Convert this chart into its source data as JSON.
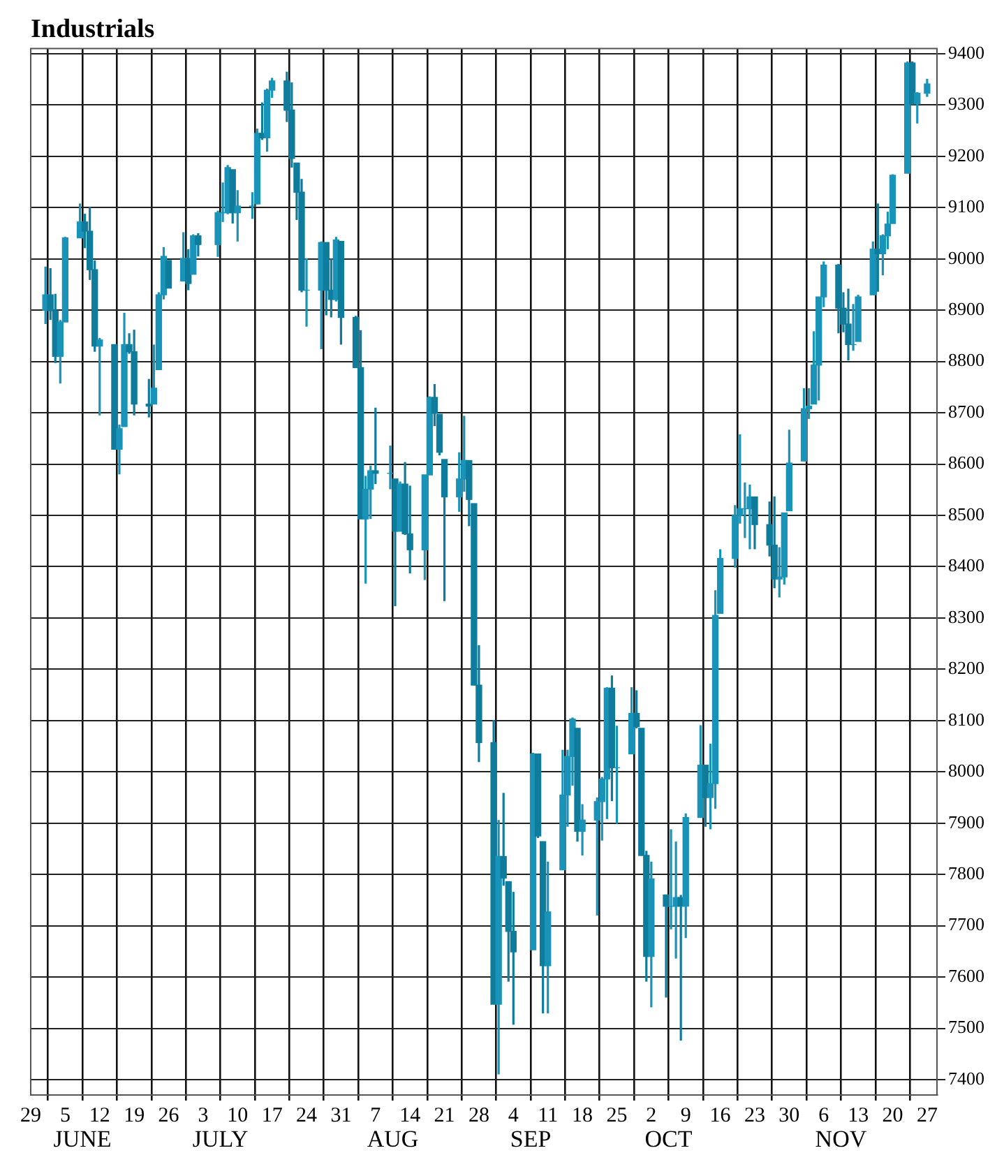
{
  "chart_data": {
    "type": "candlestick",
    "title": "Industrials",
    "colors": [
      "#1a93b8",
      "#0f7c9c",
      "#0f7c9c",
      "#1a93b8",
      "#1a93b8",
      "#1a93b8",
      "#0f7c9c",
      "#0f7c9c",
      "#0f7c9c",
      "#1a93b8",
      "#0f7c9c",
      "#1a93b8",
      "#1a93b8",
      "#0f7c9c",
      "#0f7c9c",
      "#0f7c9c",
      "#1a93b8",
      "#1a93b8",
      "#1a93b8",
      "#0f7c9c",
      "#1a93b8",
      "#0f7c9c",
      "#1a93b8",
      "#0f7c9c",
      "#1a93b8",
      "#1a93b8",
      "#1a93b8",
      "#0f7c9c",
      "#1a93b8",
      "#1a93b8",
      "#1a93b8",
      "#0f7c9c",
      "#1a93b8",
      "#1a93b8",
      "#0f7c9c",
      "#0f7c9c",
      "#0f7c9c",
      "#0f7c9c",
      "#1a93b8",
      "#1a93b8",
      "#0f7c9c",
      "#0f7c9c",
      "#1a93b8",
      "#0f7c9c",
      "#0f7c9c",
      "#0f7c9c",
      "#1a93b8",
      "#1a93b8",
      "#0f7c9c",
      "#1a93b8",
      "#0f7c9c",
      "#1a93b8",
      "#0f7c9c",
      "#0f7c9c",
      "#1a93b8",
      "#1a93b8",
      "#0f7c9c",
      "#0f7c9c",
      "#0f7c9c",
      "#1a93b8",
      "#1a93b8",
      "#0f7c9c",
      "#0f7c9c",
      "#0f7c9c",
      "#0f7c9c",
      "#1a93b8",
      "#0f7c9c",
      "#0f7c9c",
      "#0f7c9c",
      "#1a93b8",
      "#0f7c9c",
      "#0f7c9c",
      "#1a93b8",
      "#1a93b8",
      "#1a93b8",
      "#1a93b8",
      "#0f7c9c",
      "#1a93b8",
      "#1a93b8",
      "#1a93b8",
      "#1a93b8",
      "#0f7c9c",
      "#1a93b8",
      "#1a93b8",
      "#0f7c9c",
      "#0f7c9c",
      "#0f7c9c",
      "#1a93b8",
      "#0f7c9c",
      "#1a93b8",
      "#1a93b8",
      "#0f7c9c",
      "#1a93b8",
      "#1a93b8",
      "#0f7c9c",
      "#1a93b8",
      "#1a93b8",
      "#1a93b8",
      "#1a93b8",
      "#1a93b8",
      "#1a93b8",
      "#1a93b8",
      "#0f7c9c",
      "#0f7c9c",
      "#0f7c9c",
      "#1a93b8",
      "#1a93b8",
      "#1a93b8",
      "#1a93b8",
      "#1a93b8",
      "#1a93b8",
      "#1a93b8",
      "#1a93b8",
      "#0f7c9c",
      "#0f7c9c",
      "#0f7c9c",
      "#1a93b8",
      "#1a93b8",
      "#1a93b8",
      "#0f7c9c",
      "#1a93b8",
      "#1a93b8",
      "#1a93b8",
      "#1a93b8",
      "#0f7c9c",
      "#1a93b8",
      "#1a93b8"
    ],
    "x": [
      "--06-01",
      "--06-02",
      "--06-03",
      "--06-04",
      "--06-05",
      "--06-08",
      "--06-09",
      "--06-10",
      "--06-11",
      "--06-12",
      "--06-15",
      "--06-16",
      "--06-17",
      "--06-18",
      "--06-19",
      "--06-22",
      "--06-23",
      "--06-24",
      "--06-25",
      "--06-26",
      "--06-29",
      "--06-30",
      "--07-01",
      "--07-02",
      "--07-06",
      "--07-07",
      "--07-08",
      "--07-09",
      "--07-10",
      "--07-13",
      "--07-14",
      "--07-15",
      "--07-16",
      "--07-17",
      "--07-20",
      "--07-21",
      "--07-22",
      "--07-23",
      "--07-24",
      "--07-27",
      "--07-28",
      "--07-29",
      "--07-30",
      "--07-31",
      "--08-03",
      "--08-04",
      "--08-05",
      "--08-06",
      "--08-07",
      "--08-10",
      "--08-11",
      "--08-12",
      "--08-13",
      "--08-14",
      "--08-17",
      "--08-18",
      "--08-19",
      "--08-20",
      "--08-21",
      "--08-24",
      "--08-25",
      "--08-26",
      "--08-27",
      "--08-28",
      "--08-31",
      "--09-01",
      "--09-02",
      "--09-03",
      "--09-04",
      "--09-08",
      "--09-09",
      "--09-10",
      "--09-11",
      "--09-14",
      "--09-15",
      "--09-16",
      "--09-17",
      "--09-18",
      "--09-21",
      "--09-22",
      "--09-23",
      "--09-24",
      "--09-25",
      "--09-28",
      "--09-29",
      "--09-30",
      "--10-01",
      "--10-02",
      "--10-05",
      "--10-06",
      "--10-07",
      "--10-08",
      "--10-09",
      "--10-12",
      "--10-13",
      "--10-14",
      "--10-15",
      "--10-16",
      "--10-19",
      "--10-20",
      "--10-21",
      "--10-22",
      "--10-23",
      "--10-26",
      "--10-27",
      "--10-28",
      "--10-29",
      "--10-30",
      "--11-02",
      "--11-03",
      "--11-04",
      "--11-05",
      "--11-06",
      "--11-09",
      "--11-10",
      "--11-11",
      "--11-12",
      "--11-13",
      "--11-16",
      "--11-17",
      "--11-18",
      "--11-19",
      "--11-20",
      "--11-23",
      "--11-24",
      "--11-25",
      "--11-27"
    ],
    "ohlc": [
      [
        8900,
        8985,
        8873,
        8930
      ],
      [
        8930,
        8982,
        8881,
        8899
      ],
      [
        8899,
        8932,
        8797,
        8810
      ],
      [
        8810,
        8881,
        8757,
        8877
      ],
      [
        8877,
        9043,
        8877,
        9041
      ],
      [
        9041,
        9108,
        9041,
        9072
      ],
      [
        9072,
        9088,
        9021,
        9054
      ],
      [
        9054,
        9101,
        8959,
        8979
      ],
      [
        8979,
        8997,
        8819,
        8830
      ],
      [
        8830,
        8846,
        8695,
        8842
      ],
      [
        8833,
        8833,
        8629,
        8629
      ],
      [
        8629,
        8677,
        8580,
        8669
      ],
      [
        8673,
        8895,
        8673,
        8833
      ],
      [
        8833,
        8855,
        8815,
        8819
      ],
      [
        8819,
        8862,
        8695,
        8717
      ],
      [
        8717,
        8766,
        8691,
        8713
      ],
      [
        8717,
        8833,
        8717,
        8748
      ],
      [
        8784,
        8935,
        8784,
        8930
      ],
      [
        8930,
        9023,
        8921,
        9005
      ],
      [
        8997,
        8997,
        8943,
        8943
      ],
      [
        8957,
        9052,
        8957,
        9001
      ],
      [
        9001,
        9019,
        8939,
        8952
      ],
      [
        8970,
        9048,
        8970,
        9045
      ],
      [
        9045,
        9050,
        9005,
        9028
      ],
      [
        9028,
        9094,
        9004,
        9090
      ],
      [
        9090,
        9149,
        9072,
        9090
      ],
      [
        9090,
        9183,
        9087,
        9178
      ],
      [
        9174,
        9174,
        9069,
        9090
      ],
      [
        9090,
        9134,
        9034,
        9103
      ],
      [
        9103,
        9130,
        9078,
        9103
      ],
      [
        9107,
        9254,
        9107,
        9245
      ],
      [
        9245,
        9305,
        9232,
        9236
      ],
      [
        9236,
        9332,
        9209,
        9329
      ],
      [
        9329,
        9353,
        9314,
        9347
      ],
      [
        9347,
        9365,
        9267,
        9290
      ],
      [
        9290,
        9344,
        9178,
        9196
      ],
      [
        9187,
        9187,
        9076,
        9130
      ],
      [
        9130,
        9156,
        8935,
        8939
      ],
      [
        8939,
        9001,
        8868,
        8939
      ],
      [
        8939,
        9034,
        8824,
        9032
      ],
      [
        9032,
        9032,
        8890,
        8939
      ],
      [
        8939,
        9001,
        8886,
        8921
      ],
      [
        8921,
        9043,
        8917,
        9037
      ],
      [
        9034,
        9034,
        8833,
        8886
      ],
      [
        8886,
        8889,
        8788,
        8788
      ],
      [
        8788,
        8861,
        8493,
        8493
      ],
      [
        8493,
        8577,
        8367,
        8551
      ],
      [
        8551,
        8597,
        8493,
        8587
      ],
      [
        8587,
        8710,
        8561,
        8582
      ],
      [
        8582,
        8636,
        8551,
        8582
      ],
      [
        8571,
        8571,
        8323,
        8469
      ],
      [
        8469,
        8566,
        8469,
        8561
      ],
      [
        8561,
        8604,
        8462,
        8464
      ],
      [
        8464,
        8558,
        8387,
        8433
      ],
      [
        8433,
        8579,
        8374,
        8579
      ],
      [
        8579,
        8732,
        8579,
        8730
      ],
      [
        8730,
        8756,
        8674,
        8699
      ],
      [
        8697,
        8697,
        8617,
        8623
      ],
      [
        8609,
        8609,
        8333,
        8536
      ],
      [
        8536,
        8623,
        8507,
        8571
      ],
      [
        8571,
        8694,
        8546,
        8607
      ],
      [
        8607,
        8607,
        8479,
        8531
      ],
      [
        8523,
        8523,
        8169,
        8169
      ],
      [
        8169,
        8247,
        8019,
        8057
      ],
      [
        8057,
        8101,
        7547,
        7547
      ],
      [
        7547,
        7906,
        7410,
        7835
      ],
      [
        7835,
        7959,
        7778,
        7793
      ],
      [
        7786,
        7786,
        7591,
        7689
      ],
      [
        7689,
        7766,
        7507,
        7649
      ],
      [
        7653,
        8037,
        7653,
        8035
      ],
      [
        8035,
        8035,
        7871,
        7875
      ],
      [
        7864,
        7864,
        7529,
        7622
      ],
      [
        7622,
        7825,
        7529,
        7727
      ],
      [
        7809,
        8043,
        7809,
        7955
      ],
      [
        7955,
        8043,
        7893,
        8030
      ],
      [
        8030,
        8106,
        7973,
        8103
      ],
      [
        8085,
        8085,
        7864,
        7884
      ],
      [
        7884,
        7937,
        7837,
        7906
      ],
      [
        7906,
        7950,
        7720,
        7942
      ],
      [
        7942,
        7990,
        7866,
        7986
      ],
      [
        7986,
        8165,
        7908,
        8163
      ],
      [
        8163,
        8188,
        7943,
        8008
      ],
      [
        8008,
        8090,
        7899,
        8008
      ],
      [
        8035,
        8165,
        8035,
        8114
      ],
      [
        8114,
        8159,
        8085,
        8088
      ],
      [
        8085,
        8085,
        7837,
        7837
      ],
      [
        7837,
        7846,
        7591,
        7640
      ],
      [
        7640,
        7825,
        7541,
        7791
      ],
      [
        7760,
        7760,
        7560,
        7738
      ],
      [
        7738,
        7888,
        7693,
        7738
      ],
      [
        7738,
        7864,
        7636,
        7755
      ],
      [
        7755,
        7760,
        7476,
        7738
      ],
      [
        7738,
        7919,
        7676,
        7911
      ],
      [
        7911,
        8091,
        7911,
        8013
      ],
      [
        8013,
        8013,
        7893,
        7950
      ],
      [
        7950,
        8055,
        7888,
        7977
      ],
      [
        7977,
        8354,
        7928,
        8305
      ],
      [
        8309,
        8434,
        8309,
        8416
      ],
      [
        8416,
        8520,
        8398,
        8500
      ],
      [
        8500,
        8658,
        8484,
        8513
      ],
      [
        8513,
        8564,
        8456,
        8513
      ],
      [
        8513,
        8560,
        8434,
        8536
      ],
      [
        8536,
        8536,
        8434,
        8482
      ],
      [
        8482,
        8527,
        8420,
        8442
      ],
      [
        8442,
        8537,
        8358,
        8376
      ],
      [
        8376,
        8438,
        8340,
        8380
      ],
      [
        8380,
        8505,
        8365,
        8505
      ],
      [
        8509,
        8667,
        8509,
        8602
      ],
      [
        8606,
        8748,
        8606,
        8708
      ],
      [
        8708,
        8748,
        8688,
        8713
      ],
      [
        8717,
        8859,
        8717,
        8793
      ],
      [
        8793,
        8926,
        8724,
        8926
      ],
      [
        8926,
        8995,
        8906,
        8988
      ],
      [
        8988,
        8990,
        8855,
        8904
      ],
      [
        8904,
        8935,
        8857,
        8873
      ],
      [
        8873,
        8942,
        8802,
        8833
      ],
      [
        8833,
        8912,
        8821,
        8833
      ],
      [
        8839,
        8930,
        8839,
        8926
      ],
      [
        8930,
        9034,
        8930,
        9019
      ],
      [
        9019,
        9108,
        8936,
        9010
      ],
      [
        9010,
        9048,
        8968,
        9045
      ],
      [
        9045,
        9092,
        9019,
        9068
      ],
      [
        9069,
        9165,
        9069,
        9163
      ],
      [
        9167,
        9385,
        9167,
        9382
      ],
      [
        9382,
        9385,
        9300,
        9302
      ],
      [
        9302,
        9325,
        9264,
        9323
      ],
      [
        9323,
        9351,
        9316,
        9341
      ]
    ],
    "xlim": [
      "--05-29",
      "--11-29"
    ],
    "xticks": [
      {
        "value": "--05-29",
        "label": "29"
      },
      {
        "value": "--06-05",
        "label": "5"
      },
      {
        "value": "--06-12",
        "label": "12"
      },
      {
        "value": "--06-19",
        "label": "19"
      },
      {
        "value": "--06-26",
        "label": "26"
      },
      {
        "value": "--07-03",
        "label": "3"
      },
      {
        "value": "--07-10",
        "label": "10"
      },
      {
        "value": "--07-17",
        "label": "17"
      },
      {
        "value": "--07-24",
        "label": "24"
      },
      {
        "value": "--07-31",
        "label": "31"
      },
      {
        "value": "--08-07",
        "label": "7"
      },
      {
        "value": "--08-14",
        "label": "14"
      },
      {
        "value": "--08-21",
        "label": "21"
      },
      {
        "value": "--08-28",
        "label": "28"
      },
      {
        "value": "--09-04",
        "label": "4"
      },
      {
        "value": "--09-11",
        "label": "11"
      },
      {
        "value": "--09-18",
        "label": "18"
      },
      {
        "value": "--09-25",
        "label": "25"
      },
      {
        "value": "--10-02",
        "label": "2"
      },
      {
        "value": "--10-09",
        "label": "9"
      },
      {
        "value": "--10-16",
        "label": "16"
      },
      {
        "value": "--10-23",
        "label": "23"
      },
      {
        "value": "--10-30",
        "label": "30"
      },
      {
        "value": "--11-06",
        "label": "6"
      },
      {
        "value": "--11-13",
        "label": "13"
      },
      {
        "value": "--11-20",
        "label": "20"
      },
      {
        "value": "--11-27",
        "label": "27"
      }
    ],
    "ylim": [
      7370,
      9410
    ],
    "yticks": [
      7400,
      7500,
      7600,
      7700,
      7800,
      7900,
      8000,
      8100,
      8200,
      8300,
      8400,
      8500,
      8600,
      8700,
      8800,
      8900,
      9000,
      9100,
      9200,
      9300,
      9400
    ],
    "grid": true,
    "annotations": [
      "JUNE",
      "JULY",
      "AUG",
      "SEP",
      "OCT",
      "NOV"
    ]
  }
}
